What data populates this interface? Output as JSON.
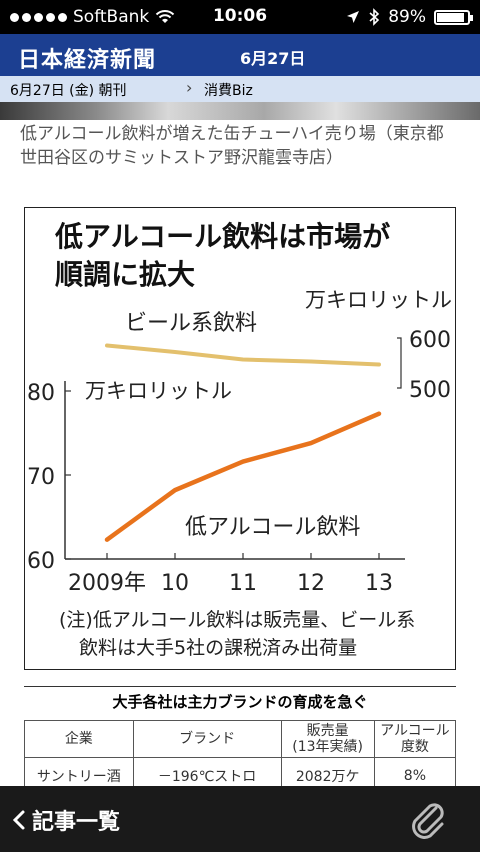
{
  "status_bar": {
    "carrier": "SoftBank",
    "time": "10:06",
    "battery": "89%",
    "battery_level": 0.89
  },
  "header": {
    "logo": "日本経済新聞",
    "date": "6月27日"
  },
  "subheader": {
    "edition": "6月27日 (金) 朝刊",
    "section": "消費Biz"
  },
  "caption": "低アルコール飲料が増えた缶チューハイ売り場（東京都世田谷区のサミットストア野沢龍雲寺店）",
  "figure": {
    "title_line1": "低アルコール飲料は市場が",
    "title_line2": "順調に拡大",
    "note_line1": "(注)低アルコール飲料は販売量、ビール系",
    "note_line2": "飲料は大手5社の課税済み出荷量"
  },
  "chart_data": {
    "type": "line",
    "x": [
      "2009年",
      "10",
      "11",
      "12",
      "13"
    ],
    "series": [
      {
        "name": "ビール系飲料",
        "unit": "万キロリットル",
        "axis": "right",
        "ylim": [
          500,
          600
        ],
        "yticks": [
          "600",
          "500"
        ],
        "values": [
          585,
          572,
          557,
          553,
          547
        ],
        "color": "#e3c06d"
      },
      {
        "name": "低アルコール飲料",
        "unit": "万キロリットル",
        "axis": "left",
        "ylim": [
          60,
          80
        ],
        "yticks": [
          "80",
          "70",
          "60"
        ],
        "values": [
          62.3,
          68.2,
          71.6,
          73.8,
          77.3
        ],
        "color": "#e8731c"
      }
    ]
  },
  "table": {
    "title": "大手各社は主力ブランドの育成を急ぐ",
    "headers": [
      "企業",
      "ブランド",
      "販売量\n(13年実績)",
      "アルコール度数"
    ],
    "row_partial": [
      "サントリー酒",
      "－196℃ストロ",
      "2082万ケ",
      "8%"
    ]
  },
  "bottom_bar": {
    "back_label": "記事一覧"
  }
}
